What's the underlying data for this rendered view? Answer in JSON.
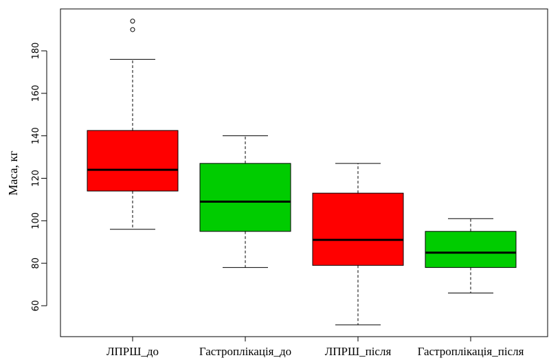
{
  "chart_data": {
    "type": "boxplot",
    "xlabel": "",
    "ylabel": "Маса, кг",
    "ylim": [
      45,
      197
    ],
    "yticks": [
      60,
      80,
      100,
      120,
      140,
      160,
      180
    ],
    "grid": false,
    "categories": [
      "ЛПРШ_до",
      "Гастроплікація_до",
      "ЛПРШ_після",
      "Гастроплікація_після"
    ],
    "series": [
      {
        "category": "ЛПРШ_до",
        "whisker_low": 96,
        "q1": 114,
        "median": 124,
        "q3": 142.5,
        "whisker_high": 176,
        "outliers": [
          190,
          194
        ],
        "color": "#ff0000"
      },
      {
        "category": "Гастроплікація_до",
        "whisker_low": 78,
        "q1": 95,
        "median": 109,
        "q3": 127,
        "whisker_high": 140,
        "outliers": [],
        "color": "#00cc00"
      },
      {
        "category": "ЛПРШ_після",
        "whisker_low": 51,
        "q1": 79,
        "median": 91,
        "q3": 113,
        "whisker_high": 127,
        "outliers": [],
        "color": "#ff0000"
      },
      {
        "category": "Гастроплікація_після",
        "whisker_low": 66,
        "q1": 78,
        "median": 85,
        "q3": 95,
        "whisker_high": 101,
        "outliers": [],
        "color": "#00cc00"
      }
    ]
  }
}
